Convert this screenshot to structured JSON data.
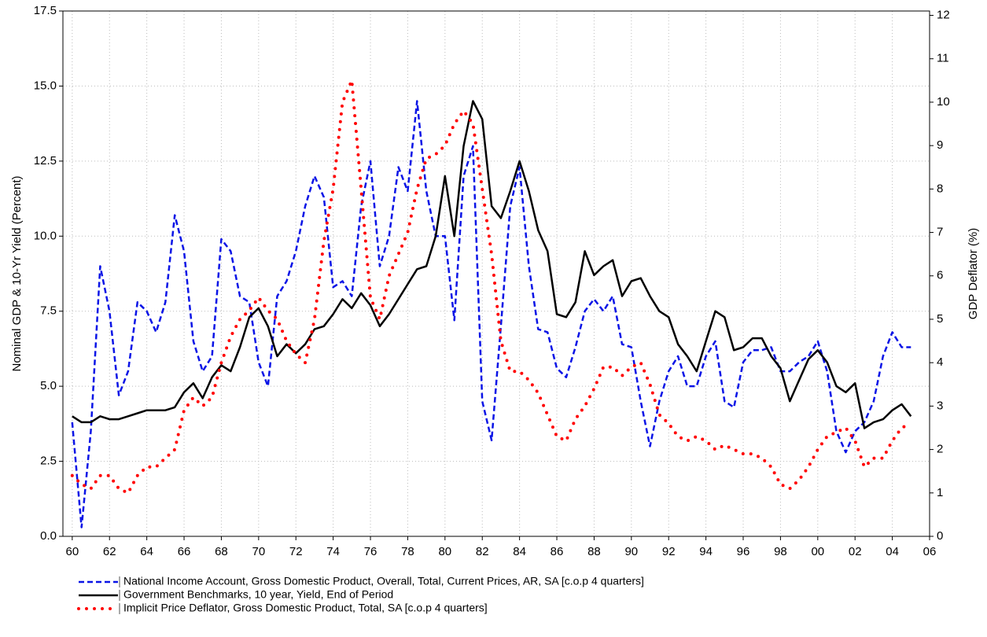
{
  "chart_data": {
    "type": "line",
    "y_label": "Nominal GDP & 10-Yr Yield (Percent)",
    "y2_label": "GDP Deflator (%)",
    "grid": true,
    "legend": "bottom",
    "xlim": [
      1959.5,
      2006.0
    ],
    "xticks": [
      {
        "value": 1960,
        "label": "60"
      },
      {
        "value": 1962,
        "label": "62"
      },
      {
        "value": 1964,
        "label": "64"
      },
      {
        "value": 1966,
        "label": "66"
      },
      {
        "value": 1968,
        "label": "68"
      },
      {
        "value": 1970,
        "label": "70"
      },
      {
        "value": 1972,
        "label": "72"
      },
      {
        "value": 1974,
        "label": "74"
      },
      {
        "value": 1976,
        "label": "76"
      },
      {
        "value": 1978,
        "label": "78"
      },
      {
        "value": 1980,
        "label": "80"
      },
      {
        "value": 1982,
        "label": "82"
      },
      {
        "value": 1984,
        "label": "84"
      },
      {
        "value": 1986,
        "label": "86"
      },
      {
        "value": 1988,
        "label": "88"
      },
      {
        "value": 1990,
        "label": "90"
      },
      {
        "value": 1992,
        "label": "92"
      },
      {
        "value": 1994,
        "label": "94"
      },
      {
        "value": 1996,
        "label": "96"
      },
      {
        "value": 1998,
        "label": "98"
      },
      {
        "value": 2000,
        "label": "00"
      },
      {
        "value": 2002,
        "label": "02"
      },
      {
        "value": 2004,
        "label": "04"
      },
      {
        "value": 2006,
        "label": "06"
      }
    ],
    "ylim": [
      0,
      17.5
    ],
    "yticks": [
      {
        "value": 0,
        "label": "0.0"
      },
      2.5,
      {
        "value": 5,
        "label": "5.0"
      },
      7.5,
      {
        "value": 10,
        "label": "10.0"
      },
      12.5,
      {
        "value": 15,
        "label": "15.0"
      },
      17.5
    ],
    "y2lim": [
      0,
      12.1
    ],
    "y2ticks": [
      0,
      1,
      2,
      3,
      4,
      5,
      6,
      7,
      8,
      9,
      10,
      11,
      12
    ],
    "x": [
      1960,
      1960.5,
      1961,
      1961.5,
      1962,
      1962.5,
      1963,
      1963.5,
      1964,
      1964.5,
      1965,
      1965.5,
      1966,
      1966.5,
      1967,
      1967.5,
      1968,
      1968.5,
      1969,
      1969.5,
      1970,
      1970.5,
      1971,
      1971.5,
      1972,
      1972.5,
      1973,
      1973.5,
      1974,
      1974.5,
      1975,
      1975.5,
      1976,
      1976.5,
      1977,
      1977.5,
      1978,
      1978.5,
      1979,
      1979.5,
      1980,
      1980.5,
      1981,
      1981.5,
      1982,
      1982.5,
      1983,
      1983.5,
      1984,
      1984.5,
      1985,
      1985.5,
      1986,
      1986.5,
      1987,
      1987.5,
      1988,
      1988.5,
      1989,
      1989.5,
      1990,
      1990.5,
      1991,
      1991.5,
      1992,
      1992.5,
      1993,
      1993.5,
      1994,
      1994.5,
      1995,
      1995.5,
      1996,
      1996.5,
      1997,
      1997.5,
      1998,
      1998.5,
      1999,
      1999.5,
      2000,
      2000.5,
      2001,
      2001.5,
      2002,
      2002.5,
      2003,
      2003.5,
      2004,
      2004.5,
      2005
    ],
    "series": [
      {
        "name": "National Income Account, Gross Domestic Product, Overall, Total, Current Prices, AR, SA [c.o.p 4 quarters]",
        "color": "#0a14e6",
        "style": "dashed",
        "values": [
          3.8,
          0.3,
          3.5,
          9.0,
          7.5,
          4.7,
          5.5,
          7.8,
          7.5,
          6.8,
          7.8,
          10.7,
          9.5,
          6.5,
          5.5,
          6.0,
          9.9,
          9.5,
          8.0,
          7.8,
          5.8,
          5.0,
          8.0,
          8.5,
          9.5,
          11.0,
          12.0,
          11.3,
          8.3,
          8.5,
          8.0,
          11.0,
          12.5,
          9.0,
          10.0,
          12.3,
          11.5,
          14.5,
          11.5,
          10.0,
          10.0,
          7.2,
          12.0,
          13.0,
          4.5,
          3.2,
          7.0,
          11.0,
          12.3,
          9.0,
          6.9,
          6.8,
          5.6,
          5.3,
          6.3,
          7.5,
          7.9,
          7.5,
          8.0,
          6.4,
          6.3,
          4.5,
          3.0,
          4.5,
          5.5,
          6.0,
          5.0,
          5.0,
          6.0,
          6.5,
          4.5,
          4.3,
          5.8,
          6.2,
          6.2,
          6.3,
          5.5,
          5.5,
          5.8,
          6.0,
          6.5,
          5.5,
          3.5,
          2.8,
          3.5,
          3.8,
          4.5,
          6.0,
          6.8,
          6.3,
          6.3
        ]
      },
      {
        "name": "Government Benchmarks, 10 year, Yield, End of Period",
        "color": "#000000",
        "style": "solid",
        "values": [
          4.0,
          3.8,
          3.8,
          4.0,
          3.9,
          3.9,
          4.0,
          4.1,
          4.2,
          4.2,
          4.2,
          4.3,
          4.8,
          5.1,
          4.6,
          5.3,
          5.7,
          5.5,
          6.3,
          7.3,
          7.6,
          7.0,
          6.0,
          6.4,
          6.1,
          6.4,
          6.9,
          7.0,
          7.4,
          7.9,
          7.6,
          8.1,
          7.7,
          7.0,
          7.4,
          7.9,
          8.4,
          8.9,
          9.0,
          10.0,
          12.0,
          10.0,
          13.0,
          14.5,
          13.9,
          11.0,
          10.6,
          11.5,
          12.5,
          11.5,
          10.2,
          9.5,
          7.4,
          7.3,
          7.8,
          9.5,
          8.7,
          9.0,
          9.2,
          8.0,
          8.5,
          8.6,
          8.0,
          7.5,
          7.3,
          6.4,
          6.0,
          5.5,
          6.5,
          7.5,
          7.3,
          6.2,
          6.3,
          6.6,
          6.6,
          6.0,
          5.6,
          4.5,
          5.2,
          5.9,
          6.2,
          5.8,
          5.0,
          4.8,
          5.1,
          3.6,
          3.8,
          3.9,
          4.2,
          4.4,
          4.0
        ]
      },
      {
        "name": "Implicit Price Deflator, Gross Domestic Product, Total, SA [c.o.p 4 quarters]",
        "color": "#ff0000",
        "style": "dotted",
        "axis": "y2",
        "values": [
          1.4,
          1.2,
          1.1,
          1.4,
          1.4,
          1.1,
          1.0,
          1.4,
          1.6,
          1.6,
          1.8,
          2.0,
          2.9,
          3.2,
          3.0,
          3.2,
          4.0,
          4.6,
          5.0,
          5.2,
          5.5,
          5.2,
          5.0,
          4.5,
          4.2,
          4.0,
          5.0,
          6.8,
          8.0,
          10.0,
          10.5,
          8.0,
          5.5,
          5.0,
          6.0,
          6.5,
          7.0,
          8.0,
          8.7,
          8.8,
          9.0,
          9.5,
          9.8,
          9.5,
          8.0,
          6.5,
          4.5,
          3.8,
          3.8,
          3.6,
          3.3,
          2.8,
          2.3,
          2.2,
          2.7,
          3.0,
          3.4,
          3.9,
          3.9,
          3.7,
          3.9,
          4.0,
          3.5,
          2.8,
          2.6,
          2.3,
          2.2,
          2.3,
          2.2,
          2.0,
          2.1,
          2.0,
          1.9,
          1.9,
          1.8,
          1.6,
          1.2,
          1.1,
          1.3,
          1.6,
          2.0,
          2.3,
          2.4,
          2.5,
          2.2,
          1.6,
          1.8,
          1.8,
          2.2,
          2.5,
          2.6
        ]
      }
    ]
  }
}
